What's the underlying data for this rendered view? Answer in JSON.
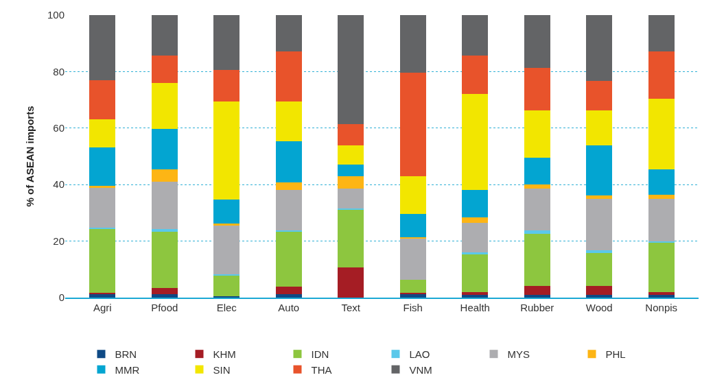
{
  "chart_data": {
    "type": "bar",
    "stacked": true,
    "ylabel": "% of ASEAN imports",
    "categories": [
      "Agri",
      "Pfood",
      "Elec",
      "Auto",
      "Text",
      "Fish",
      "Health",
      "Rubber",
      "Wood",
      "Nonpis"
    ],
    "ylim": [
      0,
      100
    ],
    "yticks": [
      0,
      20,
      40,
      60,
      80,
      100
    ],
    "grid": "y",
    "legend": "bottom",
    "series": [
      {
        "name": "BRN",
        "color": "#0f4a85",
        "values": [
          1.3,
          1.3,
          0.6,
          1.3,
          0,
          1.3,
          0.9,
          0.9,
          0.9,
          0.9
        ]
      },
      {
        "name": "KHM",
        "color": "#a51d24",
        "values": [
          0.4,
          2.2,
          0,
          2.6,
          10.8,
          0.5,
          1.1,
          3.3,
          3.3,
          1.1
        ]
      },
      {
        "name": "IDN",
        "color": "#8dc63f",
        "values": [
          22.6,
          19.8,
          7.3,
          19.4,
          20.2,
          4.5,
          13.5,
          18.4,
          11.5,
          17.3
        ]
      },
      {
        "name": "LAO",
        "color": "#5bc8ea",
        "values": [
          0.4,
          1.0,
          0.3,
          0.6,
          0.5,
          0,
          0.4,
          1.1,
          1.0,
          0.5
        ]
      },
      {
        "name": "MYS",
        "color": "#adadb0",
        "values": [
          14.2,
          16.6,
          17.2,
          14.2,
          7.2,
          14.5,
          10.5,
          15.0,
          18.2,
          15.1
        ]
      },
      {
        "name": "PHL",
        "color": "#fdb515",
        "values": [
          0.6,
          4.5,
          0.7,
          2.6,
          4.3,
          0.6,
          2.1,
          1.4,
          1.2,
          1.6
        ]
      },
      {
        "name": "MMR",
        "color": "#03a5d1",
        "values": [
          13.7,
          14.4,
          8.5,
          14.7,
          4.2,
          8.3,
          9.5,
          9.4,
          17.9,
          8.8
        ]
      },
      {
        "name": "SIN",
        "color": "#f2e600",
        "values": [
          9.9,
          16.1,
          34.9,
          14.1,
          6.8,
          13.2,
          34.0,
          16.7,
          12.2,
          25.0
        ]
      },
      {
        "name": "THA",
        "color": "#e8532b",
        "values": [
          13.8,
          9.7,
          11.1,
          17.7,
          7.3,
          36.8,
          13.8,
          15.0,
          10.5,
          16.9
        ]
      },
      {
        "name": "VNM",
        "color": "#636466",
        "values": [
          23.1,
          14.4,
          19.4,
          12.8,
          38.7,
          20.3,
          14.2,
          18.8,
          23.3,
          12.8
        ]
      }
    ]
  }
}
